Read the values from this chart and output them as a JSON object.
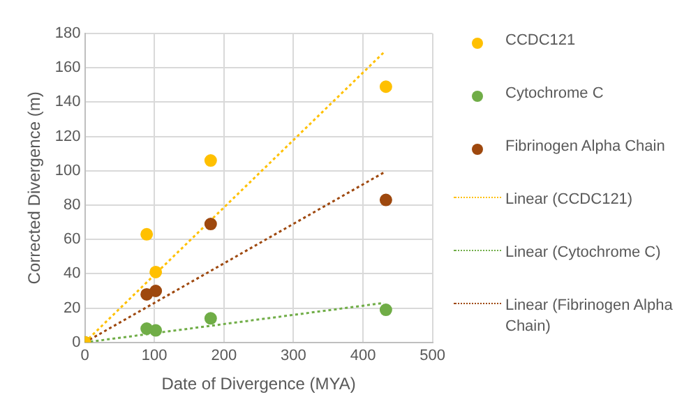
{
  "chart_data": {
    "type": "scatter",
    "xlabel": "Date of Divergence (MYA)",
    "ylabel": "Corrected Divergence (m)",
    "xlim": [
      0,
      500
    ],
    "xticks": [
      0,
      100,
      200,
      300,
      400,
      500
    ],
    "ylim": [
      0,
      180
    ],
    "yticks": [
      0,
      20,
      40,
      60,
      80,
      100,
      120,
      140,
      160,
      180
    ],
    "grid": true,
    "legend": "right",
    "marker": "circle",
    "series": [
      {
        "name": "CCDC121",
        "color": "#ffc000",
        "x": [
          0,
          89,
          102,
          181,
          433
        ],
        "values": [
          0,
          63,
          41,
          106,
          149
        ]
      },
      {
        "name": "Cytochrome C",
        "color": "#70ad47",
        "x": [
          0,
          89,
          102,
          181,
          433
        ],
        "values": [
          0,
          8,
          7,
          14,
          19
        ]
      },
      {
        "name": "Fibrinogen Alpha Chain",
        "color": "#9e480e",
        "x": [
          0,
          89,
          102,
          181,
          433
        ],
        "values": [
          0,
          28,
          30,
          69,
          83
        ]
      },
      {
        "name": "Linear (CCDC121)",
        "type": "line",
        "line_style": "dotted",
        "marker": "none",
        "color": "#ffc000",
        "x": [
          0,
          430
        ],
        "values": [
          0,
          169
        ]
      },
      {
        "name": "Linear (Cytochrome C)",
        "type": "line",
        "line_style": "dotted",
        "marker": "none",
        "color": "#70ad47",
        "x": [
          0,
          430
        ],
        "values": [
          0,
          23
        ]
      },
      {
        "name": "Linear (Fibrinogen Alpha Chain)",
        "type": "line",
        "line_style": "dotted",
        "marker": "none",
        "color": "#9e480e",
        "x": [
          0,
          430
        ],
        "values": [
          0,
          99
        ]
      }
    ]
  }
}
